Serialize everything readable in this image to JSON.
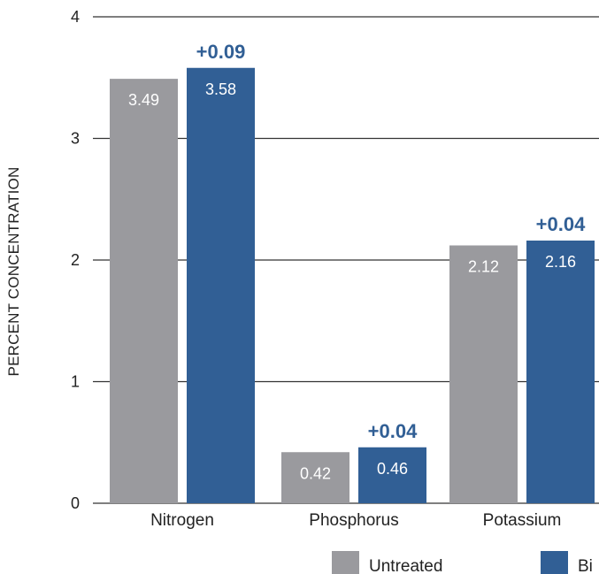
{
  "chart_data": {
    "type": "bar",
    "categories": [
      "Nitrogen",
      "Phosphorus",
      "Potassium"
    ],
    "series": [
      {
        "name": "Untreated",
        "color": "#9a9a9e",
        "values": [
          3.49,
          0.42,
          2.12
        ],
        "labels": [
          "3.49",
          "0.42",
          "2.12"
        ]
      },
      {
        "name": "Bi",
        "color": "#315f95",
        "values": [
          3.58,
          0.46,
          2.16
        ],
        "labels": [
          "3.58",
          "0.46",
          "2.16"
        ]
      }
    ],
    "differences": [
      "+0.09",
      "+0.04",
      "+0.04"
    ],
    "difference_color": "#315f95",
    "ylabel": "PERCENT CONCENTRATION",
    "ylim": [
      0,
      4
    ],
    "yticks": [
      "0",
      "1",
      "2",
      "3",
      "4"
    ],
    "grid": true,
    "legend_position": "bottom-right"
  }
}
